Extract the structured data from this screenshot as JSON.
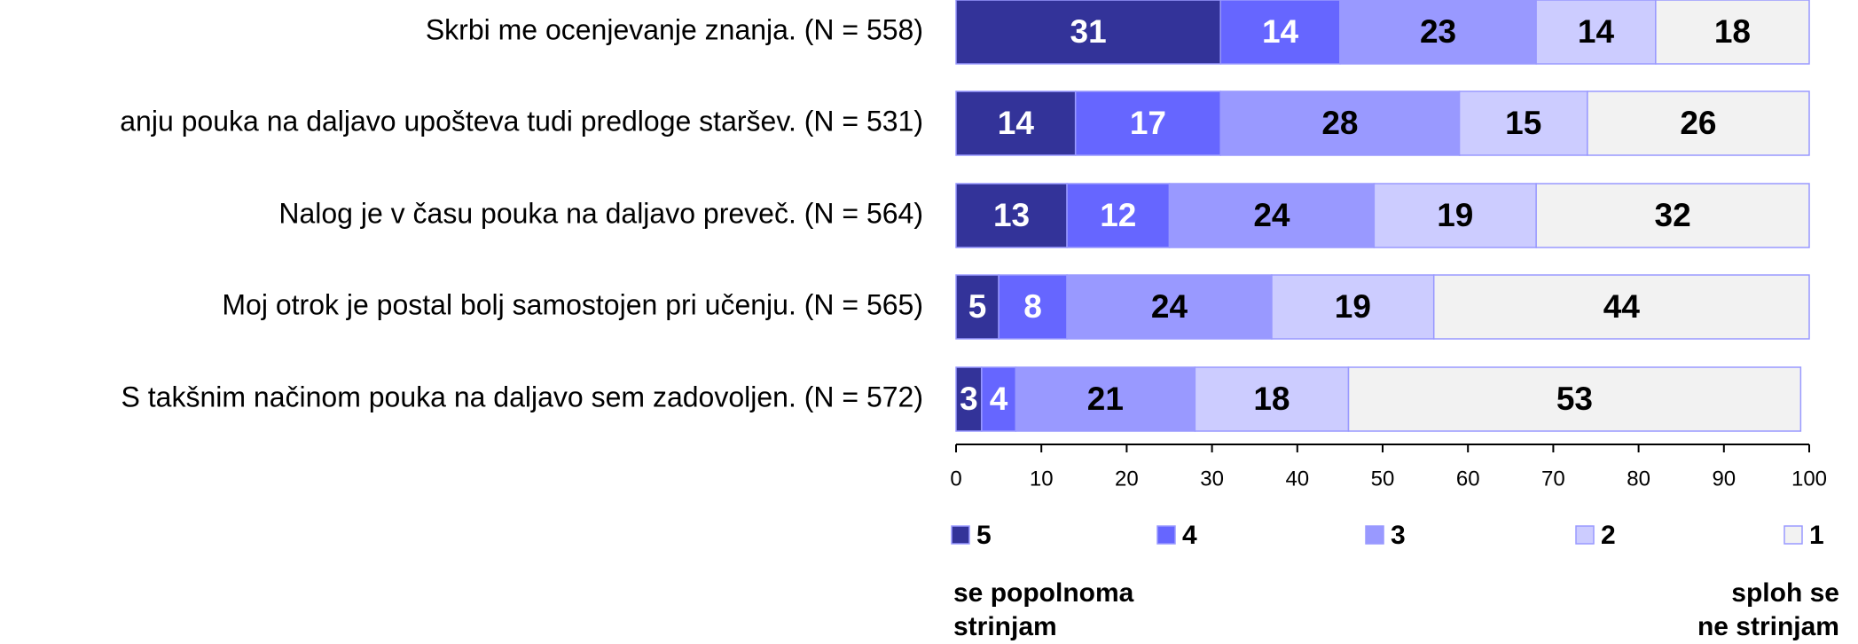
{
  "chart_data": {
    "type": "stacked-barh",
    "categories": [
      "Skrbi me ocenjevanje znanja. (N = 558)",
      "anju pouka na daljavo upošteva tudi predloge staršev. (N = 531)",
      "Nalog je v času pouka na daljavo preveč. (N = 564)",
      "Moj otrok je postal bolj samostojen pri učenju. (N = 565)",
      "S takšnim načinom pouka na daljavo sem zadovoljen. (N = 572)"
    ],
    "series": [
      {
        "name": "5",
        "color": "#333399",
        "values": [
          31,
          14,
          13,
          5,
          3
        ]
      },
      {
        "name": "4",
        "color": "#6666ff",
        "values": [
          14,
          17,
          12,
          8,
          4
        ]
      },
      {
        "name": "3",
        "color": "#9999ff",
        "values": [
          23,
          28,
          24,
          24,
          21
        ]
      },
      {
        "name": "2",
        "color": "#ccccff",
        "values": [
          14,
          15,
          19,
          19,
          18
        ]
      },
      {
        "name": "1",
        "color": "#f2f2f2",
        "values": [
          18,
          26,
          32,
          44,
          53
        ]
      }
    ],
    "xlim": [
      0,
      100
    ],
    "xticks": [
      0,
      10,
      20,
      30,
      40,
      50,
      60,
      70,
      80,
      90,
      100
    ],
    "left_note": [
      "se popolnoma",
      "strinjam"
    ],
    "right_note": [
      "sploh se",
      "ne strinjam"
    ]
  }
}
